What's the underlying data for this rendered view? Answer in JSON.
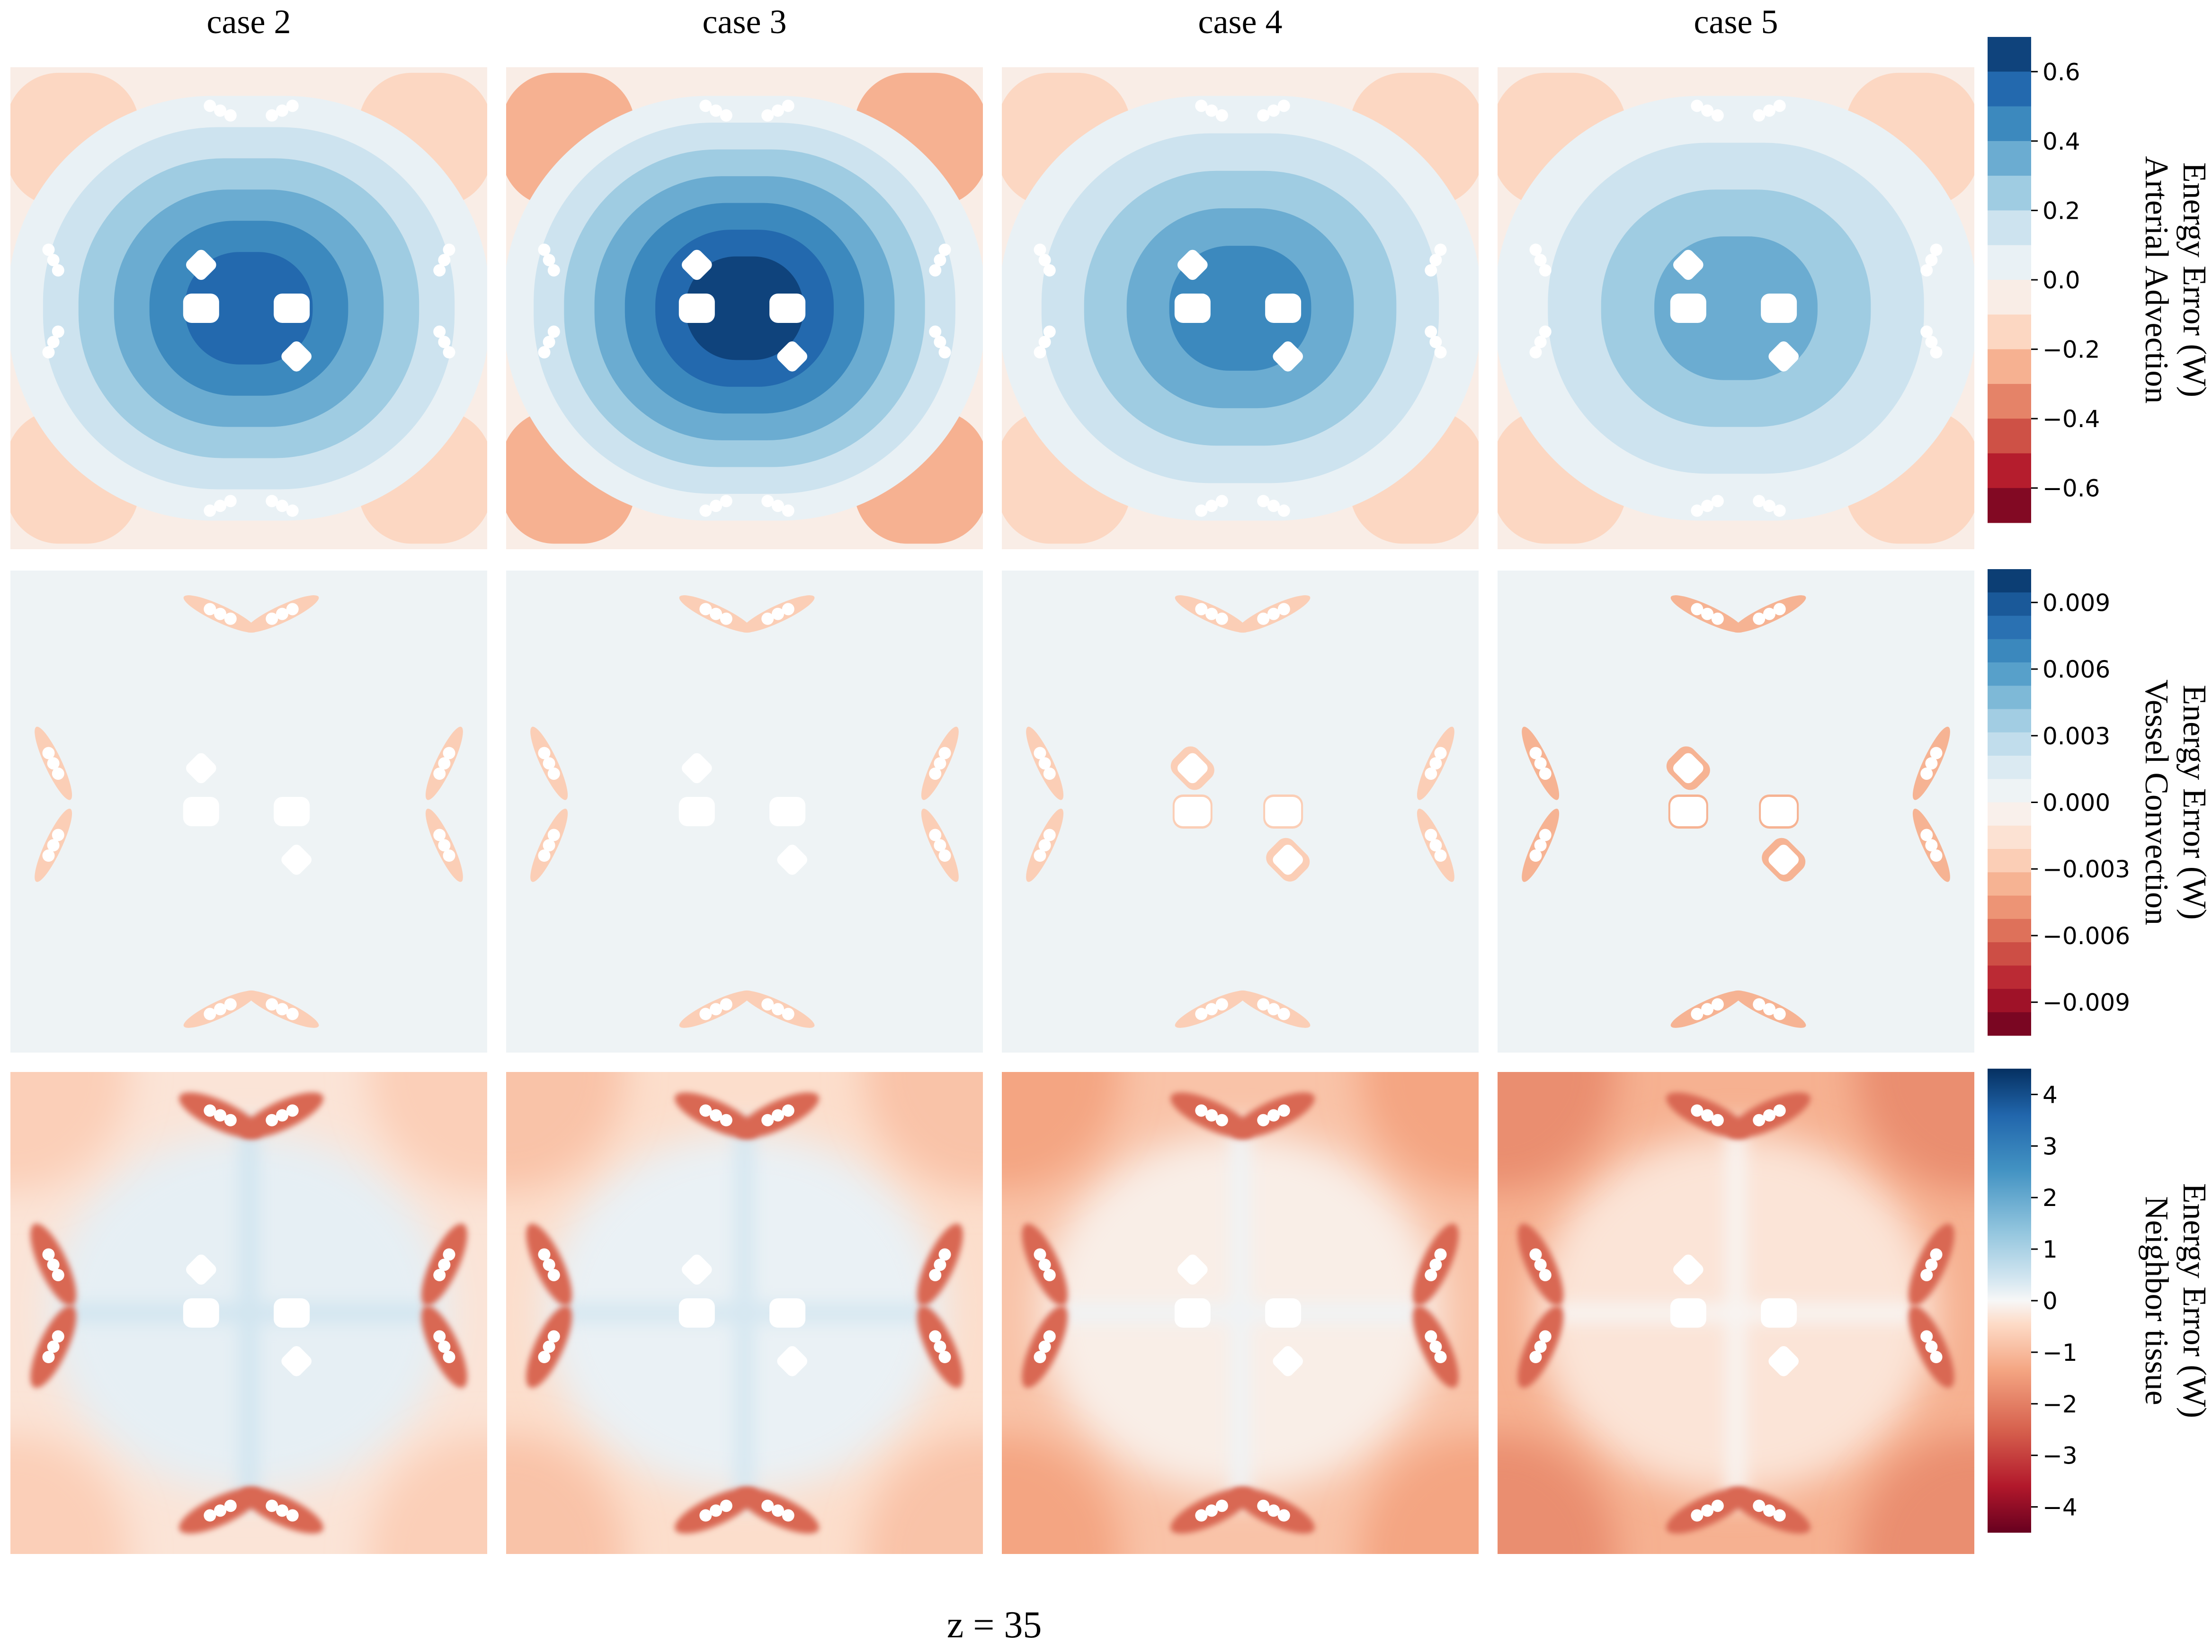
{
  "figure": {
    "bottom_label": "z = 35"
  },
  "chart_data": {
    "type": "heatmap",
    "columns": [
      "case 2",
      "case 3",
      "case 4",
      "case 5"
    ],
    "rows": [
      {
        "id": "arterial",
        "label_lines": [
          "Arterial Advection",
          "Energy Error (W)"
        ],
        "colorbar": {
          "range": [
            -0.7,
            0.7
          ],
          "levels": 14,
          "ticks": [
            0.6,
            0.4,
            0.2,
            0.0,
            -0.2,
            -0.4,
            -0.6
          ],
          "tick_labels": [
            "0.6",
            "0.4",
            "0.2",
            "0.0",
            "−0.2",
            "−0.4",
            "−0.6"
          ]
        },
        "panels": [
          {
            "case": "case 2",
            "center_value": 0.55,
            "background_value": -0.05,
            "corner_value": -0.12
          },
          {
            "case": "case 3",
            "center_value": 0.7,
            "background_value": -0.08,
            "corner_value": -0.22
          },
          {
            "case": "case 4",
            "center_value": 0.45,
            "background_value": -0.05,
            "corner_value": -0.12
          },
          {
            "case": "case 5",
            "center_value": 0.35,
            "background_value": -0.05,
            "corner_value": -0.12
          }
        ]
      },
      {
        "id": "vessel",
        "label_lines": [
          "Vessel Convection",
          "Energy Error (W)"
        ],
        "colorbar": {
          "range": [
            -0.0105,
            0.0105
          ],
          "levels": 20,
          "ticks": [
            0.009,
            0.006,
            0.003,
            0.0,
            -0.003,
            -0.006,
            -0.009
          ],
          "tick_labels": [
            "0.009",
            "0.006",
            "0.003",
            "0.000",
            "−0.003",
            "−0.006",
            "−0.009"
          ]
        },
        "panels": [
          {
            "case": "case 2",
            "background_value": 0.0002,
            "edge_value": -0.003
          },
          {
            "case": "case 3",
            "background_value": 0.0002,
            "edge_value": -0.003
          },
          {
            "case": "case 4",
            "background_value": 0.0002,
            "edge_value": -0.003
          },
          {
            "case": "case 5",
            "background_value": 0.0002,
            "edge_value": -0.004
          }
        ]
      },
      {
        "id": "neighbor",
        "label_lines": [
          "Neighbor tissue",
          "Energy Error (W)"
        ],
        "colorbar": {
          "range": [
            -4.5,
            4.5
          ],
          "levels": 60,
          "ticks": [
            4,
            3,
            2,
            1,
            0,
            -1,
            -2,
            -3,
            -4
          ],
          "tick_labels": [
            "4",
            "3",
            "2",
            "1",
            "0",
            "−1",
            "−2",
            "−3",
            "−4"
          ]
        },
        "panels": [
          {
            "case": "case 2",
            "center_value": 0.4,
            "background_value": -0.6
          },
          {
            "case": "case 3",
            "center_value": 0.3,
            "background_value": -0.8
          },
          {
            "case": "case 4",
            "center_value": -0.3,
            "background_value": -1.3
          },
          {
            "case": "case 5",
            "center_value": -0.6,
            "background_value": -1.6
          }
        ]
      }
    ]
  }
}
